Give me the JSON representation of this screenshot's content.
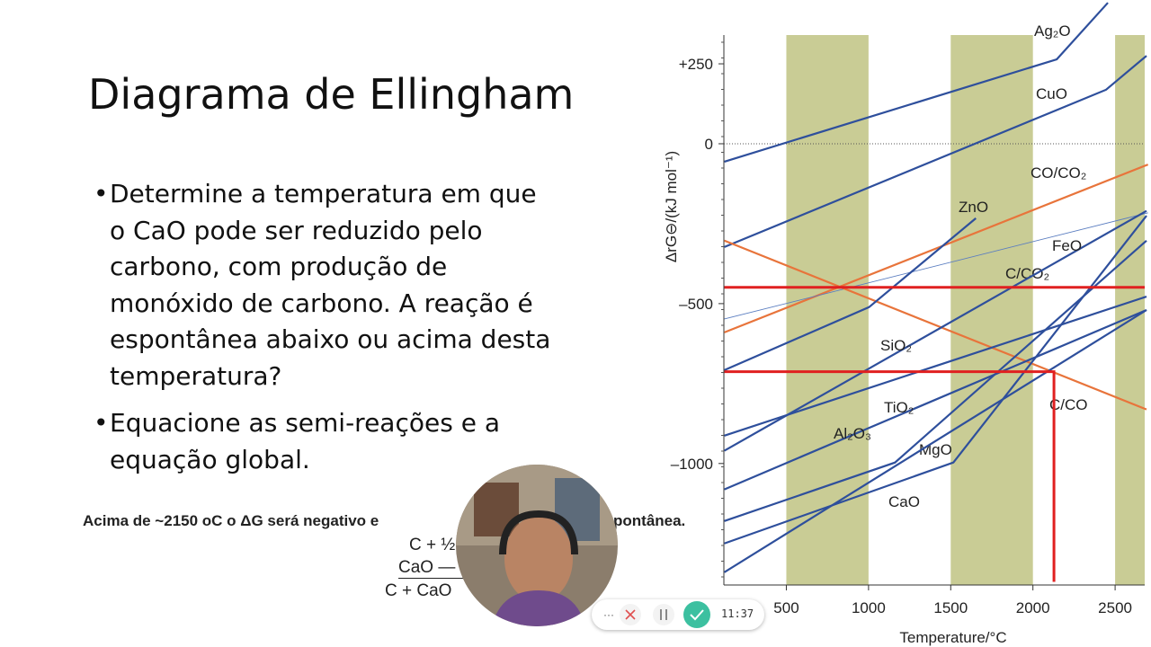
{
  "slide": {
    "title": "Diagrama de Ellingham",
    "bullets": [
      "Determine a temperatura em que o CaO pode ser reduzido pelo carbono, com produção de monóxido de carbono. A reação é espontânea abaixo ou acima desta temperatura?",
      "Equacione as semi-reações e a equação global."
    ],
    "answer": [
      "Acima de ~2150 oC o ΔG será negativo e",
      "pontânea."
    ],
    "equation": [
      "C + ½",
      "CaO —",
      "C + CaO"
    ]
  },
  "chart_data": {
    "type": "line",
    "xlabel": "Temperature/°C",
    "ylabel": "ΔrG⊖/(kJ mol⁻¹)",
    "xlim": [
      120,
      2680
    ],
    "ylim": [
      -1380,
      340
    ],
    "xticks": [
      500,
      1000,
      1500,
      2000,
      2500
    ],
    "yticks": [
      {
        "value": 250,
        "label": "+250"
      },
      0,
      {
        "value": -500,
        "label": "–500"
      },
      {
        "value": -1000,
        "label": "–1000"
      }
    ],
    "zero_line": true,
    "bands": [
      [
        500,
        1000
      ],
      [
        1500,
        2000
      ],
      [
        2500,
        2680
      ]
    ],
    "band_color": "#c9cc95",
    "series": [
      {
        "name": "Ag₂O",
        "color": "#2e4f9c",
        "x": [
          123,
          2145,
          2456
        ],
        "y": [
          -56,
          264,
          441
        ]
      },
      {
        "name": "CuO",
        "color": "#2e4f9c",
        "x": [
          123,
          2445,
          2691
        ],
        "y": [
          -323,
          169,
          275
        ]
      },
      {
        "name": "CO/CO₂",
        "color": "#e8743b",
        "x": [
          123,
          2700
        ],
        "y": [
          -590,
          -65
        ]
      },
      {
        "name": "C/CO₂",
        "color": "#5a7dc0",
        "x": [
          123,
          2700
        ],
        "y": [
          -548,
          -216
        ]
      },
      {
        "name": "C/CO",
        "color": "#e8743b",
        "x": [
          123,
          2691
        ],
        "y": [
          -303,
          -831
        ]
      },
      {
        "name": "ZnO",
        "color": "#2e4f9c",
        "x": [
          123,
          1003,
          1653
        ],
        "y": [
          -708,
          -511,
          -233
        ]
      },
      {
        "name": "FeO",
        "color": "#2e4f9c",
        "x": [
          123,
          2691
        ],
        "y": [
          -960,
          -210
        ]
      },
      {
        "name": "SiO₂",
        "color": "#2e4f9c",
        "x": [
          123,
          2691
        ],
        "y": [
          -913,
          -478
        ]
      },
      {
        "name": "TiO₂",
        "color": "#2e4f9c",
        "x": [
          123,
          2691
        ],
        "y": [
          -1081,
          -520
        ]
      },
      {
        "name": "Al₂O₃",
        "color": "#2e4f9c",
        "x": [
          123,
          1161,
          2691
        ],
        "y": [
          -1180,
          -997,
          -303
        ]
      },
      {
        "name": "MgO",
        "color": "#2e4f9c",
        "x": [
          123,
          1516,
          2691
        ],
        "y": [
          -1250,
          -997,
          -225
        ]
      },
      {
        "name": "CaO",
        "color": "#2e4f9c",
        "x": [
          123,
          2691
        ],
        "y": [
          -1340,
          -520
        ]
      },
      {
        "color": "#e02020",
        "x": [
          123,
          2680
        ],
        "y": [
          -449,
          -449
        ]
      },
      {
        "color": "#e02020",
        "x": [
          123,
          2128,
          2128
        ],
        "y": [
          -713,
          -713,
          -1370
        ]
      }
    ]
  },
  "recorder": {
    "timer": "11:37"
  }
}
